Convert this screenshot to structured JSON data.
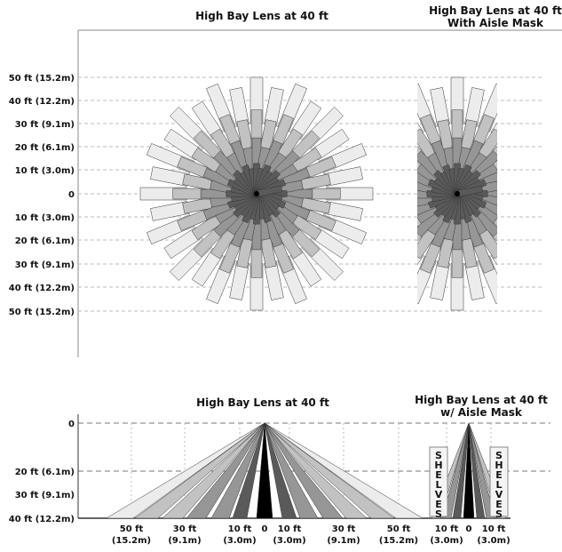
{
  "top_view": {
    "title_main": "High Bay Lens at 40 ft",
    "title_mask_line1": "High Bay Lens at 40 ft",
    "title_mask_line2": "With Aisle Mask",
    "y_labels": [
      "50 ft (15.2m)",
      "40 ft (12.2m)",
      "30 ft (9.1m)",
      "20 ft (6.1m)",
      "10 ft (3.0m)",
      "0",
      "10 ft (3.0m)",
      "20 ft (6.1m)",
      "30 ft (9.1m)",
      "40 ft (12.2m)",
      "50 ft (15.2m)"
    ]
  },
  "side_view": {
    "title_main": "High Bay Lens at 40 ft",
    "title_mask_line1": "High Bay Lens at 40 ft",
    "title_mask_line2": "w/ Aisle Mask",
    "y_labels": [
      "0",
      "20 ft (6.1m)",
      "30 ft (9.1m)",
      "40 ft (12.2m)"
    ],
    "x_labels": [
      {
        "ft": "50 ft",
        "m": "(15.2m)"
      },
      {
        "ft": "30 ft",
        "m": "(9.1m)"
      },
      {
        "ft": "10 ft",
        "m": "(3.0m)"
      },
      {
        "ft": "0",
        "m": ""
      },
      {
        "ft": "10 ft",
        "m": "(3.0m)"
      },
      {
        "ft": "30 ft",
        "m": "(9.1m)"
      },
      {
        "ft": "50 ft",
        "m": "(15.2m)"
      }
    ],
    "mask_x_labels": [
      {
        "ft": "10 ft",
        "m": "(3.0m)"
      },
      {
        "ft": "0",
        "m": ""
      },
      {
        "ft": "10 ft",
        "m": "(3.0m)"
      }
    ],
    "shelves_label": "SHELVES"
  },
  "colors": {
    "zone_far": "#ececec",
    "zone_outer": "#c2c2c2",
    "zone_mid": "#969696",
    "zone_inner": "#5a5a5a",
    "zone_center": "#000000",
    "outline": "#333333",
    "grid": "#bbbbbb"
  }
}
